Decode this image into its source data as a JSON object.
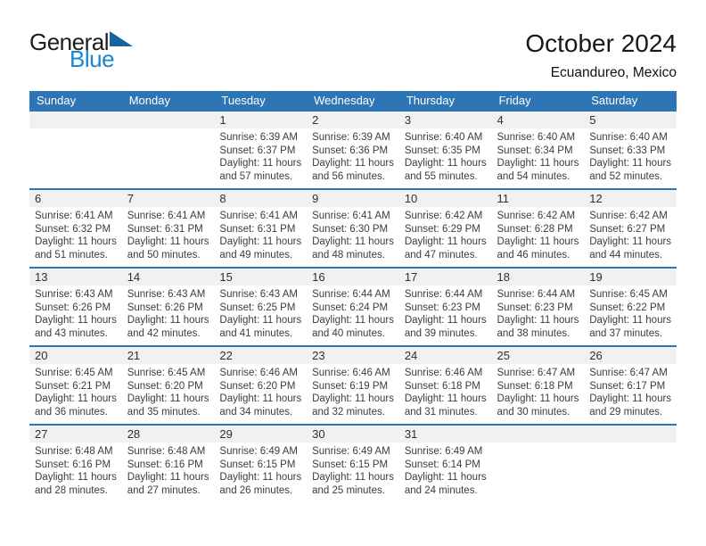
{
  "brand": {
    "logo_part1": "General",
    "logo_part2": "Blue",
    "logo_triangle_icon": "blue-right-triangle"
  },
  "header": {
    "title": "October 2024",
    "location": "Ecuandureo, Mexico"
  },
  "colors": {
    "header_blue": "#2e75b5",
    "row_divider_blue": "#2e75b5",
    "day_band_gray": "#f1f1f1",
    "logo_blue": "#1787d2",
    "logo_triangle_blue": "#16649e",
    "weekday_text": "#ffffff",
    "body_text": "#3c3c3c"
  },
  "calendar": {
    "weekdays": [
      "Sunday",
      "Monday",
      "Tuesday",
      "Wednesday",
      "Thursday",
      "Friday",
      "Saturday"
    ],
    "weeks": [
      [
        {
          "day": ""
        },
        {
          "day": ""
        },
        {
          "day": "1",
          "sunrise": "Sunrise: 6:39 AM",
          "sunset": "Sunset: 6:37 PM",
          "daylight_line1": "Daylight: 11 hours",
          "daylight_line2": "and 57 minutes."
        },
        {
          "day": "2",
          "sunrise": "Sunrise: 6:39 AM",
          "sunset": "Sunset: 6:36 PM",
          "daylight_line1": "Daylight: 11 hours",
          "daylight_line2": "and 56 minutes."
        },
        {
          "day": "3",
          "sunrise": "Sunrise: 6:40 AM",
          "sunset": "Sunset: 6:35 PM",
          "daylight_line1": "Daylight: 11 hours",
          "daylight_line2": "and 55 minutes."
        },
        {
          "day": "4",
          "sunrise": "Sunrise: 6:40 AM",
          "sunset": "Sunset: 6:34 PM",
          "daylight_line1": "Daylight: 11 hours",
          "daylight_line2": "and 54 minutes."
        },
        {
          "day": "5",
          "sunrise": "Sunrise: 6:40 AM",
          "sunset": "Sunset: 6:33 PM",
          "daylight_line1": "Daylight: 11 hours",
          "daylight_line2": "and 52 minutes."
        }
      ],
      [
        {
          "day": "6",
          "sunrise": "Sunrise: 6:41 AM",
          "sunset": "Sunset: 6:32 PM",
          "daylight_line1": "Daylight: 11 hours",
          "daylight_line2": "and 51 minutes."
        },
        {
          "day": "7",
          "sunrise": "Sunrise: 6:41 AM",
          "sunset": "Sunset: 6:31 PM",
          "daylight_line1": "Daylight: 11 hours",
          "daylight_line2": "and 50 minutes."
        },
        {
          "day": "8",
          "sunrise": "Sunrise: 6:41 AM",
          "sunset": "Sunset: 6:31 PM",
          "daylight_line1": "Daylight: 11 hours",
          "daylight_line2": "and 49 minutes."
        },
        {
          "day": "9",
          "sunrise": "Sunrise: 6:41 AM",
          "sunset": "Sunset: 6:30 PM",
          "daylight_line1": "Daylight: 11 hours",
          "daylight_line2": "and 48 minutes."
        },
        {
          "day": "10",
          "sunrise": "Sunrise: 6:42 AM",
          "sunset": "Sunset: 6:29 PM",
          "daylight_line1": "Daylight: 11 hours",
          "daylight_line2": "and 47 minutes."
        },
        {
          "day": "11",
          "sunrise": "Sunrise: 6:42 AM",
          "sunset": "Sunset: 6:28 PM",
          "daylight_line1": "Daylight: 11 hours",
          "daylight_line2": "and 46 minutes."
        },
        {
          "day": "12",
          "sunrise": "Sunrise: 6:42 AM",
          "sunset": "Sunset: 6:27 PM",
          "daylight_line1": "Daylight: 11 hours",
          "daylight_line2": "and 44 minutes."
        }
      ],
      [
        {
          "day": "13",
          "sunrise": "Sunrise: 6:43 AM",
          "sunset": "Sunset: 6:26 PM",
          "daylight_line1": "Daylight: 11 hours",
          "daylight_line2": "and 43 minutes."
        },
        {
          "day": "14",
          "sunrise": "Sunrise: 6:43 AM",
          "sunset": "Sunset: 6:26 PM",
          "daylight_line1": "Daylight: 11 hours",
          "daylight_line2": "and 42 minutes."
        },
        {
          "day": "15",
          "sunrise": "Sunrise: 6:43 AM",
          "sunset": "Sunset: 6:25 PM",
          "daylight_line1": "Daylight: 11 hours",
          "daylight_line2": "and 41 minutes."
        },
        {
          "day": "16",
          "sunrise": "Sunrise: 6:44 AM",
          "sunset": "Sunset: 6:24 PM",
          "daylight_line1": "Daylight: 11 hours",
          "daylight_line2": "and 40 minutes."
        },
        {
          "day": "17",
          "sunrise": "Sunrise: 6:44 AM",
          "sunset": "Sunset: 6:23 PM",
          "daylight_line1": "Daylight: 11 hours",
          "daylight_line2": "and 39 minutes."
        },
        {
          "day": "18",
          "sunrise": "Sunrise: 6:44 AM",
          "sunset": "Sunset: 6:23 PM",
          "daylight_line1": "Daylight: 11 hours",
          "daylight_line2": "and 38 minutes."
        },
        {
          "day": "19",
          "sunrise": "Sunrise: 6:45 AM",
          "sunset": "Sunset: 6:22 PM",
          "daylight_line1": "Daylight: 11 hours",
          "daylight_line2": "and 37 minutes."
        }
      ],
      [
        {
          "day": "20",
          "sunrise": "Sunrise: 6:45 AM",
          "sunset": "Sunset: 6:21 PM",
          "daylight_line1": "Daylight: 11 hours",
          "daylight_line2": "and 36 minutes."
        },
        {
          "day": "21",
          "sunrise": "Sunrise: 6:45 AM",
          "sunset": "Sunset: 6:20 PM",
          "daylight_line1": "Daylight: 11 hours",
          "daylight_line2": "and 35 minutes."
        },
        {
          "day": "22",
          "sunrise": "Sunrise: 6:46 AM",
          "sunset": "Sunset: 6:20 PM",
          "daylight_line1": "Daylight: 11 hours",
          "daylight_line2": "and 34 minutes."
        },
        {
          "day": "23",
          "sunrise": "Sunrise: 6:46 AM",
          "sunset": "Sunset: 6:19 PM",
          "daylight_line1": "Daylight: 11 hours",
          "daylight_line2": "and 32 minutes."
        },
        {
          "day": "24",
          "sunrise": "Sunrise: 6:46 AM",
          "sunset": "Sunset: 6:18 PM",
          "daylight_line1": "Daylight: 11 hours",
          "daylight_line2": "and 31 minutes."
        },
        {
          "day": "25",
          "sunrise": "Sunrise: 6:47 AM",
          "sunset": "Sunset: 6:18 PM",
          "daylight_line1": "Daylight: 11 hours",
          "daylight_line2": "and 30 minutes."
        },
        {
          "day": "26",
          "sunrise": "Sunrise: 6:47 AM",
          "sunset": "Sunset: 6:17 PM",
          "daylight_line1": "Daylight: 11 hours",
          "daylight_line2": "and 29 minutes."
        }
      ],
      [
        {
          "day": "27",
          "sunrise": "Sunrise: 6:48 AM",
          "sunset": "Sunset: 6:16 PM",
          "daylight_line1": "Daylight: 11 hours",
          "daylight_line2": "and 28 minutes."
        },
        {
          "day": "28",
          "sunrise": "Sunrise: 6:48 AM",
          "sunset": "Sunset: 6:16 PM",
          "daylight_line1": "Daylight: 11 hours",
          "daylight_line2": "and 27 minutes."
        },
        {
          "day": "29",
          "sunrise": "Sunrise: 6:49 AM",
          "sunset": "Sunset: 6:15 PM",
          "daylight_line1": "Daylight: 11 hours",
          "daylight_line2": "and 26 minutes."
        },
        {
          "day": "30",
          "sunrise": "Sunrise: 6:49 AM",
          "sunset": "Sunset: 6:15 PM",
          "daylight_line1": "Daylight: 11 hours",
          "daylight_line2": "and 25 minutes."
        },
        {
          "day": "31",
          "sunrise": "Sunrise: 6:49 AM",
          "sunset": "Sunset: 6:14 PM",
          "daylight_line1": "Daylight: 11 hours",
          "daylight_line2": "and 24 minutes."
        },
        {
          "day": ""
        },
        {
          "day": ""
        }
      ]
    ]
  }
}
